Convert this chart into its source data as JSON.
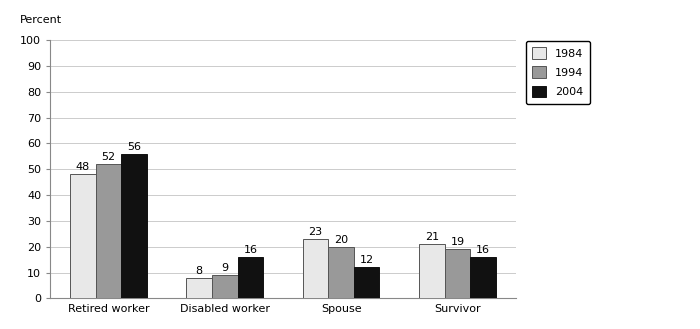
{
  "categories": [
    "Retired worker",
    "Disabled worker",
    "Spouse",
    "Survivor"
  ],
  "series": {
    "1984": [
      48,
      8,
      23,
      21
    ],
    "1994": [
      52,
      9,
      20,
      19
    ],
    "2004": [
      56,
      16,
      12,
      16
    ]
  },
  "legend_labels": [
    "1984",
    "1994",
    "2004"
  ],
  "bar_colors": [
    "#e8e8e8",
    "#999999",
    "#111111"
  ],
  "bar_edgecolors": [
    "#555555",
    "#555555",
    "#111111"
  ],
  "hatch_patterns": [
    "",
    "",
    ""
  ],
  "ylabel": "Percent",
  "ylim": [
    0,
    100
  ],
  "yticks": [
    0,
    10,
    20,
    30,
    40,
    50,
    60,
    70,
    80,
    90,
    100
  ],
  "label_fontsize": 8,
  "tick_fontsize": 8,
  "bar_width": 0.22,
  "background_color": "#ffffff"
}
